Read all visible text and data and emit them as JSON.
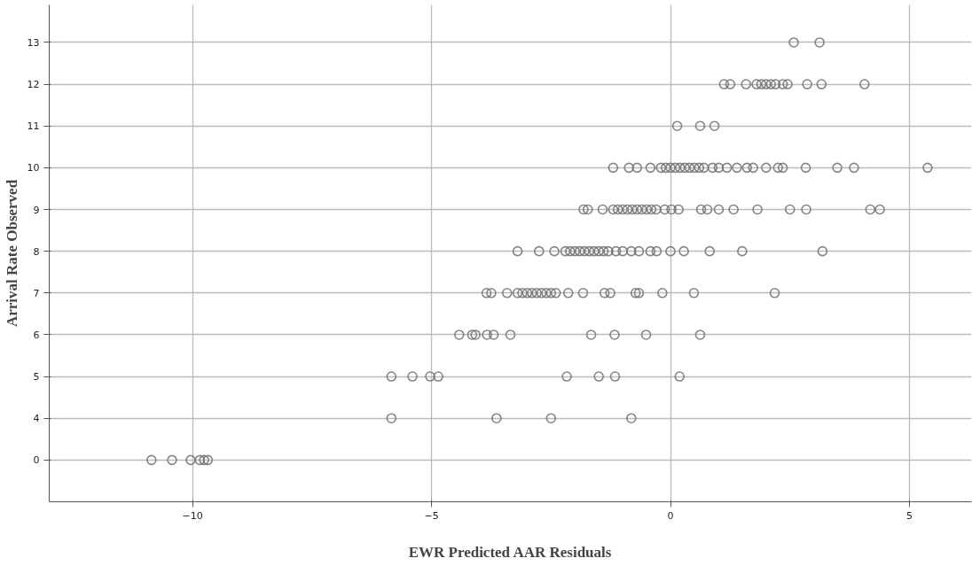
{
  "chart_data": {
    "type": "scatter",
    "orientation": "horizontal",
    "xlabel": "EWR Predicted AAR Residuals",
    "ylabel": "Arrival Rate Observed",
    "categories": [
      "13",
      "12",
      "11",
      "10",
      "9",
      "8",
      "7",
      "6",
      "5",
      "4",
      "0"
    ],
    "xlim": [
      -13,
      6.3
    ],
    "xticks": [
      -10,
      -5,
      0,
      5
    ],
    "grid": true,
    "marker": "circle",
    "series": [
      {
        "color": "#707070",
        "x": [
          "13",
          "13"
        ],
        "values": [
          2.58,
          3.12
        ]
      },
      {
        "color": "#707070",
        "x": [
          "12",
          "12",
          "12",
          "12",
          "12",
          "12",
          "12",
          "12",
          "12",
          "12",
          "12",
          "12",
          "12"
        ],
        "values": [
          1.12,
          1.25,
          1.58,
          1.8,
          1.9,
          2.0,
          2.1,
          2.2,
          2.35,
          2.45,
          2.86,
          3.16,
          4.06
        ]
      },
      {
        "color": "#707070",
        "x": [
          "11",
          "11",
          "11"
        ],
        "values": [
          0.14,
          0.62,
          0.92
        ]
      },
      {
        "color": "#707070",
        "x": [
          "10",
          "10",
          "10",
          "10",
          "10",
          "10",
          "10",
          "10",
          "10",
          "10",
          "10",
          "10",
          "10",
          "10",
          "10",
          "10",
          "10",
          "10",
          "10",
          "10",
          "10",
          "10",
          "10",
          "10",
          "10",
          "10",
          "10"
        ],
        "values": [
          -1.2,
          -0.87,
          -0.7,
          -0.42,
          -0.2,
          -0.1,
          0.0,
          0.1,
          0.2,
          0.3,
          0.4,
          0.5,
          0.6,
          0.7,
          0.88,
          1.01,
          1.18,
          1.39,
          1.6,
          1.73,
          2.0,
          2.25,
          2.35,
          2.83,
          3.49,
          3.84,
          5.38
        ]
      },
      {
        "color": "#707070",
        "x": [
          "9",
          "9",
          "9",
          "9",
          "9",
          "9",
          "9",
          "9",
          "9",
          "9",
          "9",
          "9",
          "9",
          "9",
          "9",
          "9",
          "9",
          "9",
          "9",
          "9",
          "9",
          "9",
          "9",
          "9",
          "9"
        ],
        "values": [
          -1.82,
          -1.73,
          -1.42,
          -1.2,
          -1.1,
          -1.0,
          -0.9,
          -0.8,
          -0.7,
          -0.6,
          -0.5,
          -0.4,
          -0.3,
          -0.12,
          0.02,
          0.17,
          0.64,
          0.77,
          1.01,
          1.32,
          1.82,
          2.5,
          2.84,
          4.18,
          4.38
        ]
      },
      {
        "color": "#707070",
        "x": [
          "8",
          "8",
          "8",
          "8",
          "8",
          "8",
          "8",
          "8",
          "8",
          "8",
          "8",
          "8",
          "8",
          "8",
          "8",
          "8",
          "8",
          "8",
          "8",
          "8",
          "8",
          "8",
          "8",
          "8"
        ],
        "values": [
          -3.2,
          -2.75,
          -2.43,
          -2.2,
          -2.1,
          -2.0,
          -1.9,
          -1.8,
          -1.7,
          -1.6,
          -1.5,
          -1.4,
          -1.3,
          -1.14,
          -1.0,
          -0.82,
          -0.66,
          -0.42,
          -0.29,
          0.0,
          0.28,
          0.82,
          1.5,
          3.18
        ]
      },
      {
        "color": "#707070",
        "x": [
          "7",
          "7",
          "7",
          "7",
          "7",
          "7",
          "7",
          "7",
          "7",
          "7",
          "7",
          "7",
          "7",
          "7",
          "7",
          "7",
          "7",
          "7",
          "7",
          "7",
          "7"
        ],
        "values": [
          -3.85,
          -3.75,
          -3.42,
          -3.2,
          -3.1,
          -3.0,
          -2.9,
          -2.8,
          -2.7,
          -2.6,
          -2.5,
          -2.4,
          -2.14,
          -1.83,
          -1.38,
          -1.26,
          -0.73,
          -0.66,
          -0.17,
          0.49,
          2.18
        ]
      },
      {
        "color": "#707070",
        "x": [
          "6",
          "6",
          "6",
          "6",
          "6",
          "6",
          "6",
          "6",
          "6",
          "6"
        ],
        "values": [
          -4.42,
          -4.15,
          -4.08,
          -3.84,
          -3.7,
          -3.35,
          -1.66,
          -1.17,
          -0.51,
          0.62
        ]
      },
      {
        "color": "#707070",
        "x": [
          "5",
          "5",
          "5",
          "5",
          "5",
          "5",
          "5",
          "5"
        ],
        "values": [
          -5.84,
          -5.4,
          -5.03,
          -4.86,
          -2.17,
          -1.5,
          -1.16,
          0.19
        ]
      },
      {
        "color": "#707070",
        "x": [
          "4",
          "4",
          "4",
          "4"
        ],
        "values": [
          -5.84,
          -3.64,
          -2.5,
          -0.82
        ]
      },
      {
        "color": "#707070",
        "x": [
          "0",
          "0",
          "0",
          "0",
          "0",
          "0"
        ],
        "values": [
          -10.86,
          -10.43,
          -10.04,
          -9.85,
          -9.76,
          -9.68
        ]
      }
    ]
  }
}
